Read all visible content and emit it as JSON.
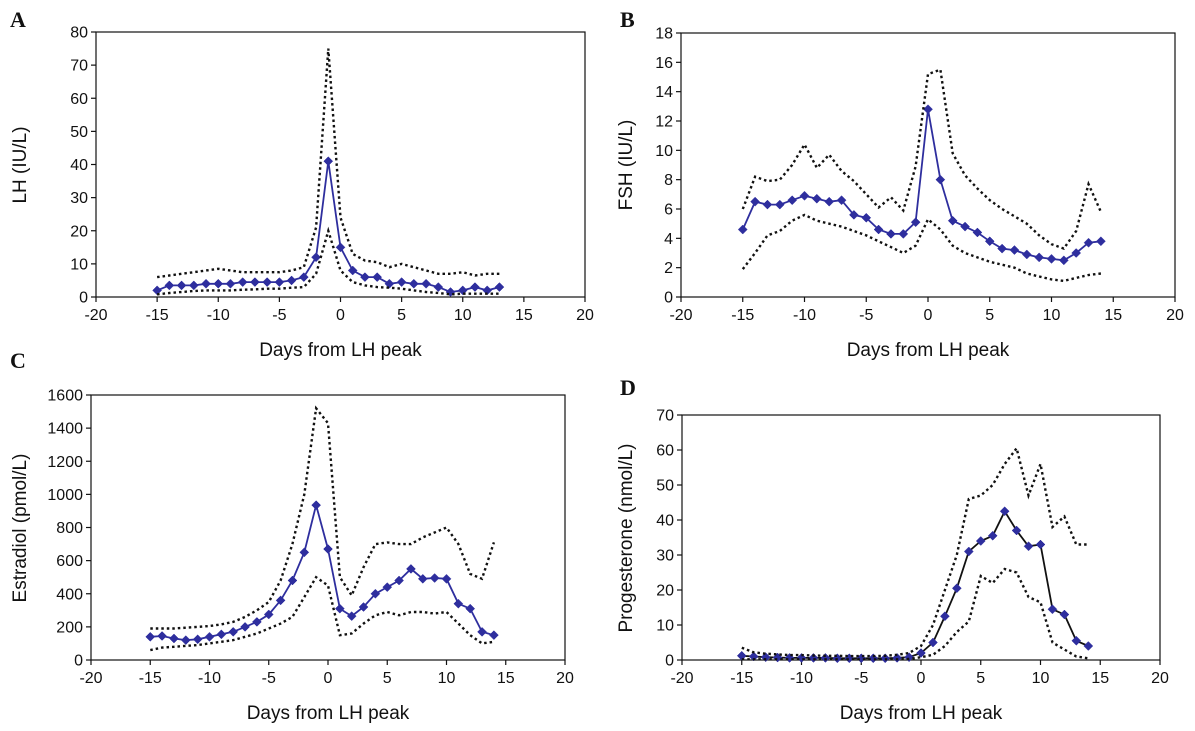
{
  "colors": {
    "mean_line": "#2e2e9e",
    "mean_line_progesterone": "#111111",
    "marker": "#2e2e9e",
    "band": "#111111",
    "axis": "#111111"
  },
  "chart_data": [
    {
      "panel": "A",
      "type": "line",
      "title": "",
      "xlabel": "Days from LH peak",
      "ylabel": "LH (IU/L)",
      "xlim": [
        -20,
        20
      ],
      "ylim": [
        0,
        80
      ],
      "xticks": [
        -20,
        -15,
        -10,
        -5,
        0,
        5,
        10,
        15,
        20
      ],
      "yticks": [
        0,
        10,
        20,
        30,
        40,
        50,
        60,
        70,
        80
      ],
      "series": [
        {
          "role": "mean",
          "x": [
            -15,
            -14,
            -13,
            -12,
            -11,
            -10,
            -9,
            -8,
            -7,
            -6,
            -5,
            -4,
            -3,
            -2,
            -1,
            0,
            1,
            2,
            3,
            4,
            5,
            6,
            7,
            8,
            9,
            10,
            11,
            12,
            13
          ],
          "values": [
            2,
            3.5,
            3.5,
            3.5,
            4,
            4,
            4,
            4.5,
            4.5,
            4.5,
            4.5,
            5,
            6,
            12,
            41,
            15,
            8,
            6,
            6,
            4,
            4.5,
            4,
            4,
            3,
            1.5,
            2,
            3,
            2,
            3
          ]
        },
        {
          "role": "upper",
          "x": [
            -15,
            -14,
            -13,
            -12,
            -11,
            -10,
            -9,
            -8,
            -7,
            -6,
            -5,
            -4,
            -3,
            -2,
            -1,
            0,
            1,
            2,
            3,
            4,
            5,
            6,
            7,
            8,
            9,
            10,
            11,
            12,
            13
          ],
          "values": [
            6,
            6.5,
            7,
            7.5,
            8,
            8.5,
            8,
            7.5,
            7.5,
            7.5,
            7.5,
            8,
            9,
            21,
            75,
            24,
            13,
            11,
            10.5,
            9,
            10,
            9,
            8,
            7,
            7,
            7.5,
            6.5,
            7,
            7
          ]
        },
        {
          "role": "lower",
          "x": [
            -15,
            -14,
            -13,
            -12,
            -11,
            -10,
            -9,
            -8,
            -7,
            -6,
            -5,
            -4,
            -3,
            -2,
            -1,
            0,
            1,
            2,
            3,
            4,
            5,
            6,
            7,
            8,
            9,
            10,
            11,
            12,
            13
          ],
          "values": [
            0.8,
            1.2,
            1.5,
            1.8,
            2,
            2,
            2,
            2.2,
            2.3,
            2.5,
            2.5,
            2.8,
            3,
            7,
            20,
            8,
            4.5,
            3.5,
            3,
            2.8,
            2.5,
            2,
            1.5,
            1.2,
            0.8,
            1,
            1,
            1,
            1
          ]
        }
      ]
    },
    {
      "panel": "B",
      "type": "line",
      "title": "",
      "xlabel": "Days from LH peak",
      "ylabel": "FSH (IU/L)",
      "xlim": [
        -20,
        20
      ],
      "ylim": [
        0,
        18
      ],
      "xticks": [
        -20,
        -15,
        -10,
        -5,
        0,
        5,
        10,
        15,
        20
      ],
      "yticks": [
        0,
        2,
        4,
        6,
        8,
        10,
        12,
        14,
        16,
        18
      ],
      "series": [
        {
          "role": "mean",
          "x": [
            -15,
            -14,
            -13,
            -12,
            -11,
            -10,
            -9,
            -8,
            -7,
            -6,
            -5,
            -4,
            -3,
            -2,
            -1,
            0,
            1,
            2,
            3,
            4,
            5,
            6,
            7,
            8,
            9,
            10,
            11,
            12,
            13,
            14
          ],
          "values": [
            4.6,
            6.5,
            6.3,
            6.3,
            6.6,
            6.9,
            6.7,
            6.5,
            6.6,
            5.6,
            5.4,
            4.6,
            4.3,
            4.3,
            5.1,
            12.8,
            8.0,
            5.2,
            4.8,
            4.4,
            3.8,
            3.3,
            3.2,
            2.9,
            2.7,
            2.6,
            2.5,
            3.0,
            3.7,
            3.8
          ]
        },
        {
          "role": "upper",
          "x": [
            -15,
            -14,
            -13,
            -12,
            -11,
            -10,
            -9,
            -8,
            -7,
            -6,
            -5,
            -4,
            -3,
            -2,
            -1,
            0,
            1,
            2,
            3,
            4,
            5,
            6,
            7,
            8,
            9,
            10,
            11,
            12,
            13,
            14
          ],
          "values": [
            6.0,
            8.2,
            7.9,
            8.0,
            9.0,
            10.4,
            8.8,
            9.7,
            8.6,
            7.9,
            7.0,
            6.1,
            6.8,
            5.9,
            8.9,
            15.2,
            15.5,
            9.8,
            8.3,
            7.4,
            6.6,
            6.0,
            5.5,
            5.0,
            4.2,
            3.6,
            3.3,
            4.5,
            7.7,
            5.8
          ]
        },
        {
          "role": "lower",
          "x": [
            -15,
            -14,
            -13,
            -12,
            -11,
            -10,
            -9,
            -8,
            -7,
            -6,
            -5,
            -4,
            -3,
            -2,
            -1,
            0,
            1,
            2,
            3,
            4,
            5,
            6,
            7,
            8,
            9,
            10,
            11,
            12,
            13,
            14
          ],
          "values": [
            1.9,
            3.0,
            4.2,
            4.5,
            5.2,
            5.6,
            5.2,
            5.0,
            4.8,
            4.5,
            4.2,
            3.8,
            3.4,
            3.0,
            3.5,
            5.3,
            4.6,
            3.5,
            3.0,
            2.7,
            2.4,
            2.2,
            2.0,
            1.6,
            1.4,
            1.2,
            1.1,
            1.3,
            1.5,
            1.6
          ]
        }
      ]
    },
    {
      "panel": "C",
      "type": "line",
      "title": "",
      "xlabel": "Days from LH peak",
      "ylabel": "Estradiol (pmol/L)",
      "xlim": [
        -20,
        20
      ],
      "ylim": [
        0,
        1600
      ],
      "xticks": [
        -20,
        -15,
        -10,
        -5,
        0,
        5,
        10,
        15,
        20
      ],
      "yticks": [
        0,
        200,
        400,
        600,
        800,
        1000,
        1200,
        1400,
        1600
      ],
      "series": [
        {
          "role": "mean",
          "x": [
            -15,
            -14,
            -13,
            -12,
            -11,
            -10,
            -9,
            -8,
            -7,
            -6,
            -5,
            -4,
            -3,
            -2,
            -1,
            0,
            1,
            2,
            3,
            4,
            5,
            6,
            7,
            8,
            9,
            10,
            11,
            12,
            13,
            14
          ],
          "values": [
            140,
            145,
            130,
            120,
            125,
            140,
            155,
            170,
            200,
            230,
            275,
            360,
            480,
            650,
            935,
            670,
            310,
            265,
            320,
            400,
            440,
            480,
            550,
            490,
            495,
            490,
            340,
            310,
            170,
            150
          ]
        },
        {
          "role": "upper",
          "x": [
            -15,
            -14,
            -13,
            -12,
            -11,
            -10,
            -9,
            -8,
            -7,
            -6,
            -5,
            -4,
            -3,
            -2,
            -1,
            0,
            1,
            2,
            3,
            4,
            5,
            6,
            7,
            8,
            9,
            10,
            11,
            12,
            13,
            14
          ],
          "values": [
            190,
            190,
            190,
            195,
            200,
            205,
            215,
            230,
            260,
            300,
            350,
            480,
            700,
            1000,
            1520,
            1430,
            500,
            390,
            560,
            700,
            710,
            700,
            700,
            740,
            770,
            800,
            700,
            520,
            490,
            710
          ]
        },
        {
          "role": "lower",
          "x": [
            -15,
            -14,
            -13,
            -12,
            -11,
            -10,
            -9,
            -8,
            -7,
            -6,
            -5,
            -4,
            -3,
            -2,
            -1,
            0,
            1,
            2,
            3,
            4,
            5,
            6,
            7,
            8,
            9,
            10,
            11,
            12,
            13,
            14
          ],
          "values": [
            60,
            75,
            80,
            85,
            90,
            100,
            110,
            120,
            140,
            160,
            190,
            220,
            260,
            380,
            500,
            450,
            150,
            160,
            220,
            270,
            290,
            270,
            290,
            290,
            280,
            290,
            220,
            150,
            100,
            110
          ]
        }
      ]
    },
    {
      "panel": "D",
      "type": "line",
      "title": "",
      "xlabel": "Days from LH peak",
      "ylabel": "Progesterone (nmol/L)",
      "xlim": [
        -20,
        20
      ],
      "ylim": [
        0,
        70
      ],
      "xticks": [
        -20,
        -15,
        -10,
        -5,
        0,
        5,
        10,
        15,
        20
      ],
      "yticks": [
        0,
        10,
        20,
        30,
        40,
        50,
        60,
        70
      ],
      "series": [
        {
          "role": "mean",
          "x": [
            -15,
            -14,
            -13,
            -12,
            -11,
            -10,
            -9,
            -8,
            -7,
            -6,
            -5,
            -4,
            -3,
            -2,
            -1,
            0,
            1,
            2,
            3,
            4,
            5,
            6,
            7,
            8,
            9,
            10,
            11,
            12,
            13,
            14
          ],
          "values": [
            1.2,
            1,
            0.8,
            0.7,
            0.6,
            0.6,
            0.6,
            0.6,
            0.5,
            0.5,
            0.5,
            0.5,
            0.5,
            0.6,
            0.8,
            2,
            5,
            12.5,
            20.5,
            31,
            34,
            35.5,
            42.5,
            37,
            32.5,
            33,
            14.5,
            13,
            5.5,
            4
          ]
        },
        {
          "role": "upper",
          "x": [
            -15,
            -14,
            -13,
            -12,
            -11,
            -10,
            -9,
            -8,
            -7,
            -6,
            -5,
            -4,
            -3,
            -2,
            -1,
            0,
            1,
            2,
            3,
            4,
            5,
            6,
            7,
            8,
            9,
            10,
            11,
            12,
            13,
            14
          ],
          "values": [
            3.5,
            2.2,
            1.8,
            1.6,
            1.4,
            1.4,
            1.3,
            1.2,
            1.2,
            1.1,
            1.1,
            1.1,
            1.2,
            1.5,
            2,
            4,
            10,
            20,
            30,
            46,
            47,
            50,
            56,
            60.5,
            47,
            56,
            38,
            41,
            33,
            33
          ]
        },
        {
          "role": "lower",
          "x": [
            -15,
            -14,
            -13,
            -12,
            -11,
            -10,
            -9,
            -8,
            -7,
            -6,
            -5,
            -4,
            -3,
            -2,
            -1,
            0,
            1,
            2,
            3,
            4,
            5,
            6,
            7,
            8,
            9,
            10,
            11,
            12,
            13,
            14
          ],
          "values": [
            0.2,
            0.2,
            0.2,
            0.2,
            0.2,
            0.2,
            0.2,
            0.2,
            0.2,
            0.2,
            0.2,
            0.2,
            0.2,
            0.2,
            0.3,
            0.8,
            1.5,
            4,
            8,
            11,
            24,
            22,
            26,
            25,
            18,
            16.5,
            5,
            3,
            1,
            0.5
          ]
        }
      ]
    }
  ]
}
